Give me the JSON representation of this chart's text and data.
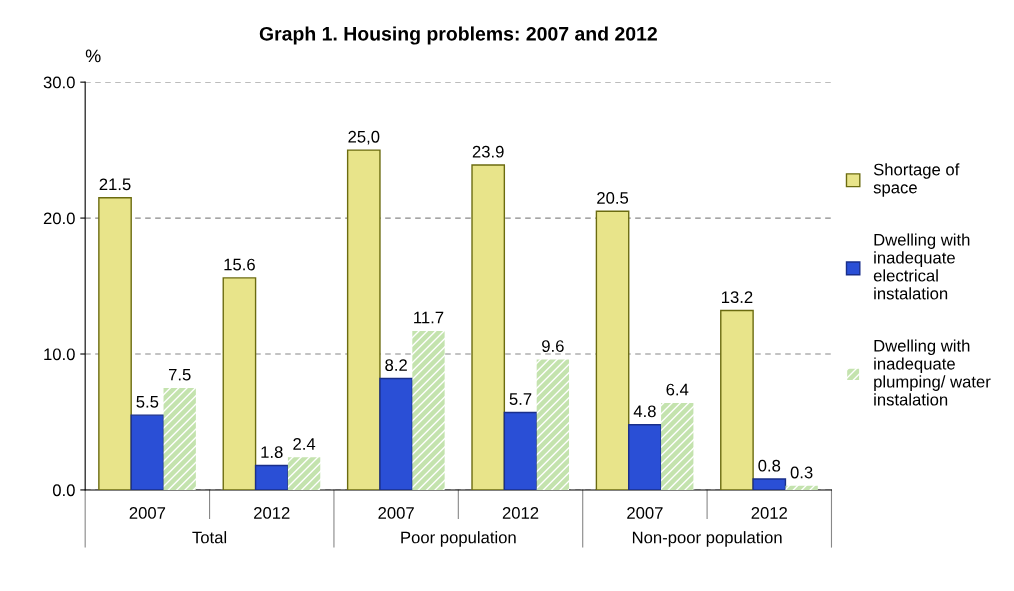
{
  "chart_data": {
    "type": "bar",
    "title": "Graph 1. Housing problems: 2007 and 2012",
    "ylabel": "%",
    "categories": [
      "2007",
      "2012",
      "2007",
      "2012",
      "2007",
      "2012"
    ],
    "annotations": [
      "Total",
      "Poor population",
      "Non-poor population"
    ],
    "series": [
      {
        "name": "Shortage of\nspace",
        "color": "#e8e48a",
        "values": [
          21.5,
          15.6,
          25.0,
          23.9,
          20.5,
          13.2
        ],
        "value_labels": [
          "21.5",
          "15.6",
          "25,0",
          "23.9",
          "20.5",
          "13.2"
        ]
      },
      {
        "name": "Dwelling with\ninadequate\nelectrical\ninstalation",
        "color": "#2a4fd6",
        "values": [
          5.5,
          1.8,
          8.2,
          5.7,
          4.8,
          0.8
        ],
        "value_labels": [
          "5.5",
          "1.8",
          "8.2",
          "5.7",
          "4.8",
          "0.8"
        ]
      },
      {
        "name": "Dwelling with\ninadequate\nplumping/ water\ninstalation",
        "color": "#c4e3ae",
        "values": [
          7.5,
          2.4,
          11.7,
          9.6,
          6.4,
          0.3
        ],
        "value_labels": [
          "7.5",
          "2.4",
          "11.7",
          "9.6",
          "6.4",
          "0.3"
        ]
      }
    ],
    "ylim": [
      0,
      30
    ],
    "yticks": [
      {
        "value": 0,
        "label": "0.0"
      },
      {
        "value": 10,
        "label": "10.0"
      },
      {
        "value": 20,
        "label": "20.0"
      },
      {
        "value": 30,
        "label": "30.0"
      }
    ],
    "grid": "y",
    "legend": "right"
  }
}
